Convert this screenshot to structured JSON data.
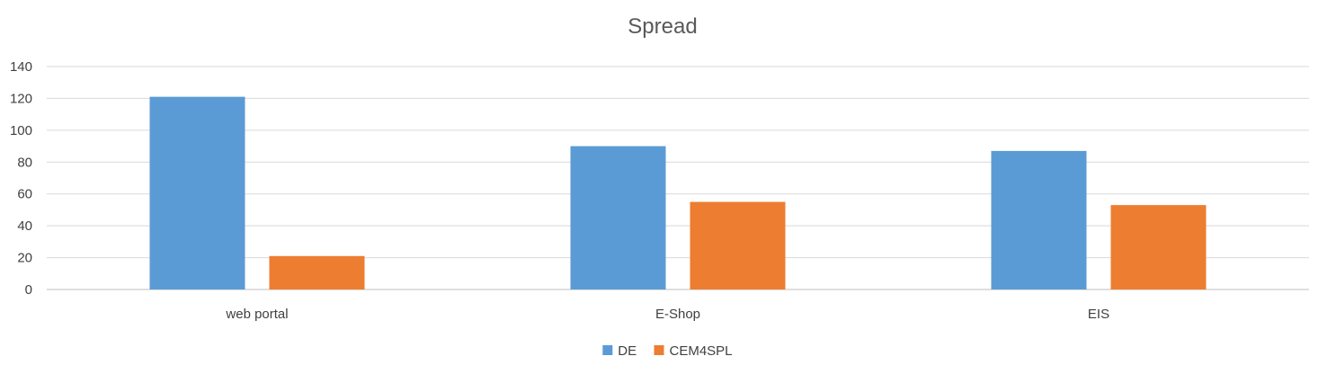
{
  "chart_data": {
    "type": "bar",
    "title": "Spread",
    "xlabel": "",
    "ylabel": "",
    "categories": [
      "web portal",
      "E-Shop",
      "EIS"
    ],
    "series": [
      {
        "name": "DE",
        "values": [
          121,
          90,
          87
        ],
        "color": "#5B9BD5"
      },
      {
        "name": "CEM4SPL",
        "values": [
          21,
          55,
          53
        ],
        "color": "#ED7D31"
      }
    ],
    "ylim": [
      0,
      140
    ],
    "yticks": [
      0,
      20,
      40,
      60,
      80,
      100,
      120,
      140
    ],
    "grid": true,
    "legend_position": "bottom"
  }
}
